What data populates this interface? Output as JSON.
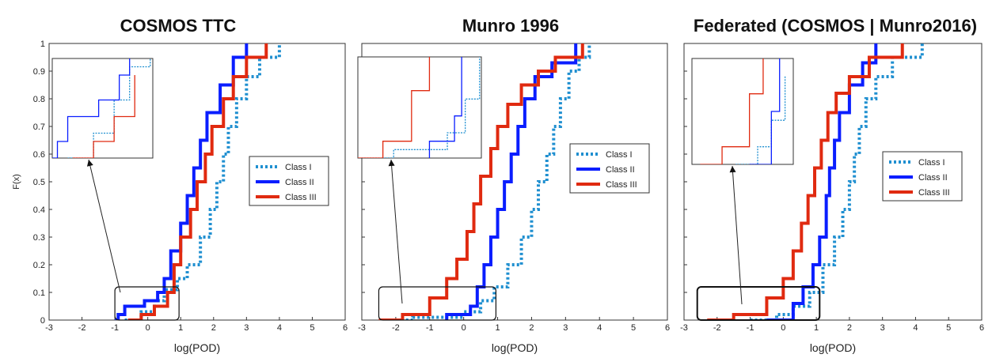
{
  "figure": {
    "panels": [
      {
        "title": "COSMOS TTC"
      },
      {
        "title": "Munro 1996"
      },
      {
        "title": "Federated (COSMOS | Munro2016)"
      }
    ]
  },
  "chart_data": [
    {
      "type": "line",
      "title": "COSMOS TTC",
      "xlabel": "log(POD)",
      "ylabel": "F(x)",
      "xlim": [
        -3,
        6
      ],
      "ylim": [
        0,
        1
      ],
      "xticks": [
        -3,
        -2,
        -1,
        0,
        1,
        2,
        3,
        4,
        5,
        6
      ],
      "yticks": [
        0,
        0.1,
        0.2,
        0.3,
        0.4,
        0.5,
        0.6,
        0.7,
        0.8,
        0.9,
        1
      ],
      "legend_position": "right",
      "inset_zoom_box": {
        "x": [
          -1.0,
          0.95
        ],
        "y": [
          0,
          0.12
        ]
      },
      "series": [
        {
          "name": "Class I",
          "color": "#1f8fd0",
          "style": "dotted",
          "points": [
            [
              -0.7,
              0
            ],
            [
              -0.2,
              0.03
            ],
            [
              0.2,
              0.07
            ],
            [
              0.5,
              0.11
            ],
            [
              0.9,
              0.15
            ],
            [
              1.2,
              0.2
            ],
            [
              1.6,
              0.3
            ],
            [
              1.9,
              0.4
            ],
            [
              2.1,
              0.5
            ],
            [
              2.3,
              0.6
            ],
            [
              2.45,
              0.7
            ],
            [
              2.7,
              0.8
            ],
            [
              3.0,
              0.88
            ],
            [
              3.4,
              0.95
            ],
            [
              4.0,
              1
            ]
          ]
        },
        {
          "name": "Class II",
          "color": "#0a1eff",
          "style": "solid",
          "points": [
            [
              -1.0,
              0
            ],
            [
              -0.9,
              0.02
            ],
            [
              -0.7,
              0.05
            ],
            [
              -0.1,
              0.07
            ],
            [
              0.3,
              0.1
            ],
            [
              0.5,
              0.15
            ],
            [
              0.7,
              0.25
            ],
            [
              1.0,
              0.35
            ],
            [
              1.2,
              0.45
            ],
            [
              1.4,
              0.55
            ],
            [
              1.6,
              0.65
            ],
            [
              1.8,
              0.75
            ],
            [
              2.2,
              0.85
            ],
            [
              2.6,
              0.95
            ],
            [
              3.0,
              1
            ]
          ]
        },
        {
          "name": "Class III",
          "color": "#e02a10",
          "style": "solid",
          "points": [
            [
              -0.6,
              0
            ],
            [
              -0.2,
              0.02
            ],
            [
              0.2,
              0.05
            ],
            [
              0.6,
              0.1
            ],
            [
              0.8,
              0.2
            ],
            [
              1.0,
              0.3
            ],
            [
              1.3,
              0.4
            ],
            [
              1.5,
              0.5
            ],
            [
              1.75,
              0.6
            ],
            [
              1.95,
              0.7
            ],
            [
              2.3,
              0.8
            ],
            [
              2.6,
              0.88
            ],
            [
              3.0,
              0.95
            ],
            [
              3.6,
              1
            ]
          ]
        }
      ]
    },
    {
      "type": "line",
      "title": "Munro 1996",
      "xlabel": "log(POD)",
      "ylabel": "",
      "xlim": [
        -3,
        6
      ],
      "ylim": [
        0,
        1
      ],
      "xticks": [
        -3,
        -2,
        -1,
        0,
        1,
        2,
        3,
        4,
        5,
        6
      ],
      "legend_position": "right",
      "inset_zoom_box": {
        "x": [
          -2.5,
          0.95
        ],
        "y": [
          0,
          0.12
        ]
      },
      "series": [
        {
          "name": "Class I",
          "color": "#1f8fd0",
          "style": "dotted",
          "points": [
            [
              -2.4,
              0
            ],
            [
              -1.5,
              0.01
            ],
            [
              0.0,
              0.03
            ],
            [
              0.5,
              0.07
            ],
            [
              0.9,
              0.12
            ],
            [
              1.3,
              0.2
            ],
            [
              1.7,
              0.3
            ],
            [
              2.0,
              0.4
            ],
            [
              2.2,
              0.5
            ],
            [
              2.45,
              0.6
            ],
            [
              2.65,
              0.7
            ],
            [
              2.85,
              0.8
            ],
            [
              3.1,
              0.9
            ],
            [
              3.4,
              0.95
            ],
            [
              3.7,
              1
            ]
          ]
        },
        {
          "name": "Class II",
          "color": "#0a1eff",
          "style": "solid",
          "points": [
            [
              -0.5,
              0
            ],
            [
              -0.5,
              0.02
            ],
            [
              0.2,
              0.05
            ],
            [
              0.4,
              0.12
            ],
            [
              0.6,
              0.2
            ],
            [
              0.8,
              0.3
            ],
            [
              1.0,
              0.4
            ],
            [
              1.2,
              0.5
            ],
            [
              1.4,
              0.6
            ],
            [
              1.6,
              0.7
            ],
            [
              1.8,
              0.8
            ],
            [
              2.1,
              0.88
            ],
            [
              2.6,
              0.93
            ],
            [
              3.3,
              1
            ]
          ]
        },
        {
          "name": "Class III",
          "color": "#e02a10",
          "style": "solid",
          "points": [
            [
              -2.5,
              0
            ],
            [
              -1.8,
              0.02
            ],
            [
              -1.0,
              0.08
            ],
            [
              -0.5,
              0.15
            ],
            [
              -0.2,
              0.22
            ],
            [
              0.1,
              0.32
            ],
            [
              0.3,
              0.42
            ],
            [
              0.5,
              0.52
            ],
            [
              0.8,
              0.62
            ],
            [
              1.0,
              0.7
            ],
            [
              1.3,
              0.78
            ],
            [
              1.7,
              0.85
            ],
            [
              2.2,
              0.9
            ],
            [
              2.7,
              0.95
            ],
            [
              3.5,
              1
            ]
          ]
        }
      ]
    },
    {
      "type": "line",
      "title": "Federated (COSMOS | Munro2016)",
      "xlabel": "log(POD)",
      "ylabel": "",
      "xlim": [
        -3,
        6
      ],
      "ylim": [
        0,
        1
      ],
      "xticks": [
        -3,
        -2,
        -1,
        0,
        1,
        2,
        3,
        4,
        5,
        6
      ],
      "legend_position": "right",
      "inset_zoom_box": {
        "x": [
          -2.6,
          1.1
        ],
        "y": [
          0,
          0.12
        ]
      },
      "series": [
        {
          "name": "Class I",
          "color": "#1f8fd0",
          "style": "dotted",
          "points": [
            [
              -1.0,
              0
            ],
            [
              -0.2,
              0.02
            ],
            [
              0.3,
              0.05
            ],
            [
              0.8,
              0.1
            ],
            [
              1.2,
              0.2
            ],
            [
              1.55,
              0.3
            ],
            [
              1.8,
              0.4
            ],
            [
              2.0,
              0.5
            ],
            [
              2.15,
              0.6
            ],
            [
              2.3,
              0.7
            ],
            [
              2.5,
              0.8
            ],
            [
              2.8,
              0.88
            ],
            [
              3.3,
              0.95
            ],
            [
              4.2,
              1
            ]
          ]
        },
        {
          "name": "Class II",
          "color": "#0a1eff",
          "style": "solid",
          "points": [
            [
              -0.5,
              0
            ],
            [
              0.3,
              0.02
            ],
            [
              0.3,
              0.06
            ],
            [
              0.6,
              0.12
            ],
            [
              0.9,
              0.2
            ],
            [
              1.1,
              0.3
            ],
            [
              1.3,
              0.45
            ],
            [
              1.4,
              0.55
            ],
            [
              1.55,
              0.65
            ],
            [
              1.7,
              0.75
            ],
            [
              2.0,
              0.85
            ],
            [
              2.4,
              0.93
            ],
            [
              2.8,
              1
            ]
          ]
        },
        {
          "name": "Class III",
          "color": "#e02a10",
          "style": "solid",
          "points": [
            [
              -2.3,
              0
            ],
            [
              -1.5,
              0.02
            ],
            [
              -0.5,
              0.08
            ],
            [
              0.0,
              0.15
            ],
            [
              0.3,
              0.25
            ],
            [
              0.55,
              0.35
            ],
            [
              0.75,
              0.45
            ],
            [
              0.95,
              0.55
            ],
            [
              1.15,
              0.65
            ],
            [
              1.35,
              0.75
            ],
            [
              1.6,
              0.82
            ],
            [
              2.0,
              0.88
            ],
            [
              2.6,
              0.95
            ],
            [
              3.6,
              1
            ]
          ]
        }
      ]
    }
  ]
}
